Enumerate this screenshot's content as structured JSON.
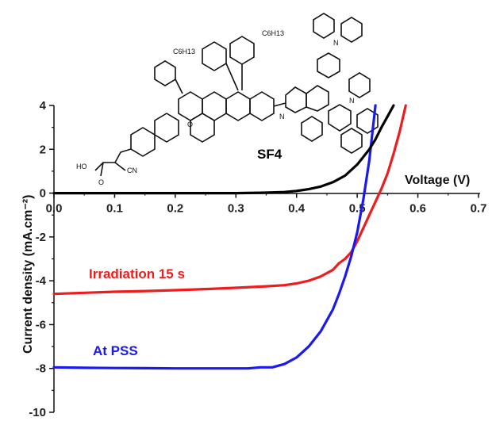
{
  "chart_data": {
    "type": "line",
    "title": "",
    "xlabel": "Voltage (V)",
    "ylabel": "Current density (mA.cm⁻²)",
    "xlim": [
      0.0,
      0.7
    ],
    "ylim": [
      -10,
      4
    ],
    "x_ticks": [
      "0.0",
      "0.1",
      "0.2",
      "0.3",
      "0.4",
      "0.5",
      "0.6",
      "0.7"
    ],
    "y_ticks": [
      "4",
      "2",
      "0",
      "-2",
      "-4",
      "-6",
      "-8",
      "-10"
    ],
    "grid": false,
    "series": [
      {
        "name": "Irradiation 15 s",
        "color": "#ee1c1c",
        "x": [
          0.0,
          0.05,
          0.1,
          0.15,
          0.2,
          0.25,
          0.3,
          0.35,
          0.38,
          0.4,
          0.42,
          0.44,
          0.46,
          0.47,
          0.48,
          0.49,
          0.5,
          0.51,
          0.52,
          0.53,
          0.54,
          0.55,
          0.56,
          0.57,
          0.58
        ],
        "y": [
          -4.6,
          -4.55,
          -4.5,
          -4.47,
          -4.43,
          -4.38,
          -4.32,
          -4.25,
          -4.2,
          -4.12,
          -4.0,
          -3.8,
          -3.5,
          -3.2,
          -3.0,
          -2.7,
          -2.2,
          -1.6,
          -1.0,
          -0.4,
          0.2,
          0.9,
          1.8,
          2.8,
          4.0
        ]
      },
      {
        "name": "At PSS",
        "color": "#1a1aee",
        "x": [
          0.0,
          0.05,
          0.1,
          0.15,
          0.2,
          0.25,
          0.3,
          0.32,
          0.34,
          0.36,
          0.38,
          0.4,
          0.42,
          0.44,
          0.46,
          0.47,
          0.48,
          0.49,
          0.5,
          0.51,
          0.52,
          0.53
        ],
        "y": [
          -7.95,
          -7.97,
          -7.98,
          -7.99,
          -8.0,
          -8.0,
          -8.0,
          -8.0,
          -7.95,
          -7.95,
          -7.8,
          -7.5,
          -7.0,
          -6.3,
          -5.3,
          -4.6,
          -3.8,
          -2.9,
          -1.8,
          -0.3,
          1.5,
          4.0
        ]
      },
      {
        "name": "",
        "color": "#000000",
        "x": [
          0.0,
          0.1,
          0.2,
          0.3,
          0.35,
          0.38,
          0.4,
          0.42,
          0.44,
          0.46,
          0.48,
          0.5,
          0.51,
          0.52,
          0.53,
          0.54,
          0.55,
          0.56
        ],
        "y": [
          0.0,
          0.0,
          0.0,
          0.0,
          0.02,
          0.05,
          0.1,
          0.18,
          0.3,
          0.5,
          0.8,
          1.3,
          1.65,
          2.0,
          2.45,
          3.0,
          3.5,
          4.0
        ]
      }
    ],
    "annotations": [
      {
        "text": "Irradiation 15 s",
        "color": "#ee1c1c"
      },
      {
        "text": "At PSS",
        "color": "#1a1aee"
      }
    ],
    "compound_label": "SF4",
    "structure_text": [
      "C6H13",
      "C6H13",
      "HO",
      "O",
      "CN",
      "O",
      "N",
      "N",
      "N"
    ]
  }
}
